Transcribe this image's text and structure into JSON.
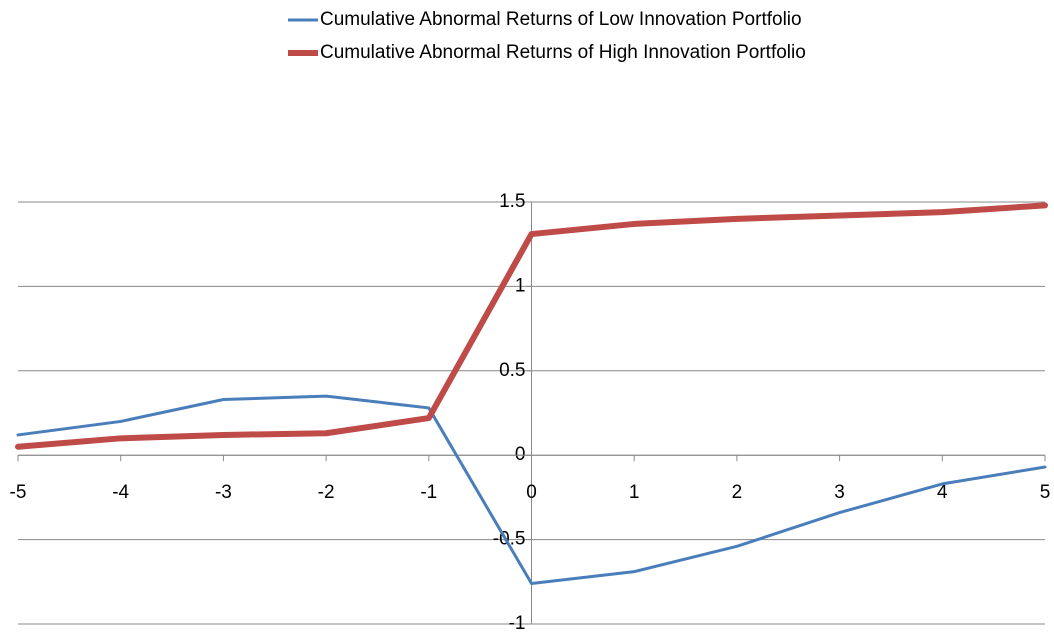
{
  "chart_data": {
    "type": "line",
    "x": [
      -5,
      -4,
      -3,
      -2,
      -1,
      0,
      1,
      2,
      3,
      4,
      5
    ],
    "series": [
      {
        "name": "Cumulative Abnormal Returns of Low Innovation Portfolio",
        "color": "#4a7ebb",
        "values": [
          0.12,
          0.2,
          0.33,
          0.35,
          0.28,
          -0.76,
          -0.69,
          -0.54,
          -0.34,
          -0.17,
          -0.07
        ]
      },
      {
        "name": "Cumulative Abnormal Returns of High Innovation Portfolio",
        "color": "#be4b48",
        "values": [
          0.05,
          0.1,
          0.12,
          0.13,
          0.22,
          1.31,
          1.37,
          1.4,
          1.42,
          1.44,
          1.48
        ]
      }
    ],
    "xlim": [
      -5,
      5
    ],
    "xticks": [
      -5,
      -4,
      -3,
      -2,
      -1,
      0,
      1,
      2,
      3,
      4,
      5
    ],
    "ylim": [
      -1,
      1.5
    ],
    "yticks": [
      1.5,
      1,
      0.5,
      0,
      -0.5,
      -1
    ],
    "grid": true,
    "legend": "top"
  }
}
